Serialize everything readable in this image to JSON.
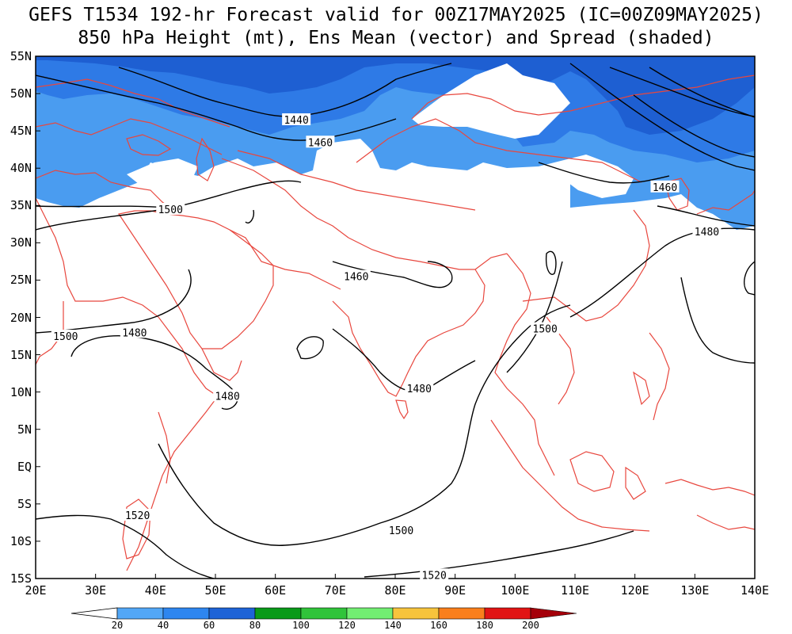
{
  "title": {
    "line1": "GEFS T1534 192-hr Forecast valid for 00Z17MAY2025 (IC=00Z09MAY2025)",
    "line2": "850 hPa Height (mt), Ens Mean (vector) and Spread (shaded)"
  },
  "map": {
    "lat_labels": [
      "55N",
      "50N",
      "45N",
      "40N",
      "35N",
      "30N",
      "25N",
      "20N",
      "15N",
      "10N",
      "5N",
      "EQ",
      "5S",
      "10S",
      "15S"
    ],
    "lon_labels": [
      "20E",
      "30E",
      "40E",
      "50E",
      "60E",
      "70E",
      "80E",
      "90E",
      "100E",
      "110E",
      "120E",
      "130E",
      "140E"
    ],
    "contour_labels": [
      {
        "text": "1440",
        "lon": 63.5,
        "lat": 46.5
      },
      {
        "text": "1460",
        "lon": 67.5,
        "lat": 43.5
      },
      {
        "text": "1500",
        "lon": 42.5,
        "lat": 34.5
      },
      {
        "text": "1460",
        "lon": 125,
        "lat": 37.5
      },
      {
        "text": "1480",
        "lon": 132,
        "lat": 31.5
      },
      {
        "text": "1460",
        "lon": 73.5,
        "lat": 25.5
      },
      {
        "text": "1500",
        "lon": 25,
        "lat": 17.5
      },
      {
        "text": "1480",
        "lon": 36.5,
        "lat": 18
      },
      {
        "text": "1500",
        "lon": 105,
        "lat": 18.5
      },
      {
        "text": "1480",
        "lon": 52,
        "lat": 9.5
      },
      {
        "text": "1480",
        "lon": 84,
        "lat": 10.5
      },
      {
        "text": "1520",
        "lon": 37,
        "lat": -6.5
      },
      {
        "text": "1500",
        "lon": 81,
        "lat": -8.5
      },
      {
        "text": "1520",
        "lon": 86.5,
        "lat": -14.5
      }
    ],
    "colors": {
      "coast": "#e8473e",
      "contour": "#000000",
      "spread_20_40": "#4a9cf0",
      "spread_40_60": "#2e7ae6",
      "spread_60_80": "#1e5fd2"
    }
  },
  "colorbar": {
    "labels": [
      "20",
      "40",
      "60",
      "80",
      "100",
      "120",
      "140",
      "160",
      "180",
      "200"
    ],
    "colors": [
      "#52a7f7",
      "#2e86ef",
      "#1e63d7",
      "#0a9a19",
      "#30c43a",
      "#72ee72",
      "#f7c43c",
      "#fa7f1c",
      "#e11414",
      "#a5000a"
    ]
  }
}
